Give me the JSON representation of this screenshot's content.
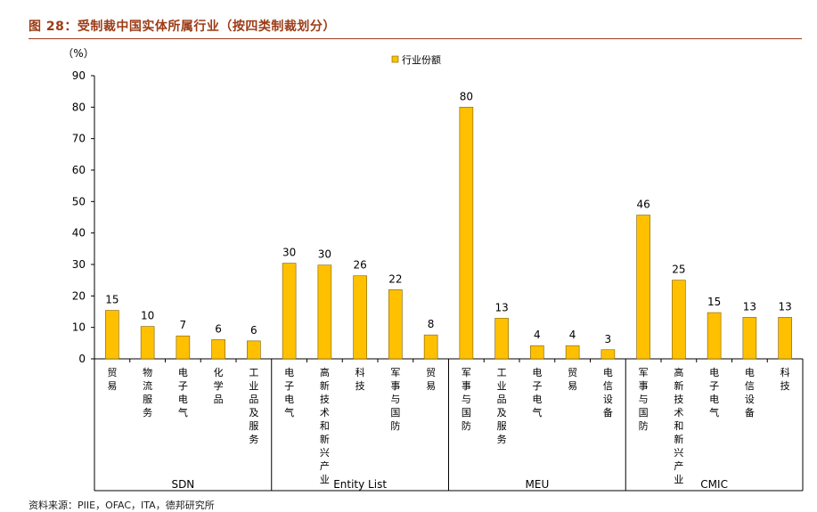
{
  "figure": {
    "title": "图 28：受制裁中国实体所属行业（按四类制裁划分）",
    "source": "资料来源：PIIE，OFAC，ITA，德邦研究所"
  },
  "chart_data": {
    "type": "bar",
    "unit_label": "（%）",
    "ylim": [
      0,
      90
    ],
    "yticks": [
      0,
      10,
      20,
      30,
      40,
      50,
      60,
      70,
      80,
      90
    ],
    "legend": {
      "label": "行业份额",
      "position": "top-center"
    },
    "bar_color": "#FFC000",
    "bar_edge": "#7f5f00",
    "grid": false,
    "series": [
      {
        "name": "行业份额",
        "values": [
          15,
          10,
          7,
          6,
          6,
          30,
          30,
          26,
          22,
          8,
          80,
          13,
          4,
          4,
          3,
          46,
          25,
          15,
          13,
          13
        ]
      }
    ],
    "categories": [
      "贸易",
      "物流服务",
      "电子电气",
      "化学品",
      "工业品及服务",
      "电子电气",
      "高新技术和新兴产业",
      "科技",
      "军事与国防",
      "贸易",
      "军事与国防",
      "工业品及服务",
      "电子电气",
      "贸易",
      "电信设备",
      "军事与国防",
      "高新技术和新兴产业",
      "电子电气",
      "电信设备",
      "科技"
    ],
    "groups": [
      {
        "label": "SDN",
        "size": 5
      },
      {
        "label": "Entity List",
        "size": 5
      },
      {
        "label": "MEU",
        "size": 5
      },
      {
        "label": "CMIC",
        "size": 5
      }
    ],
    "bar_values": [
      15.4,
      10.3,
      7.3,
      6.1,
      5.7,
      30.4,
      29.8,
      26.4,
      22.0,
      7.6,
      80.0,
      12.9,
      4.2,
      4.2,
      2.9,
      45.7,
      25.0,
      14.7,
      13.2,
      13.2
    ]
  }
}
